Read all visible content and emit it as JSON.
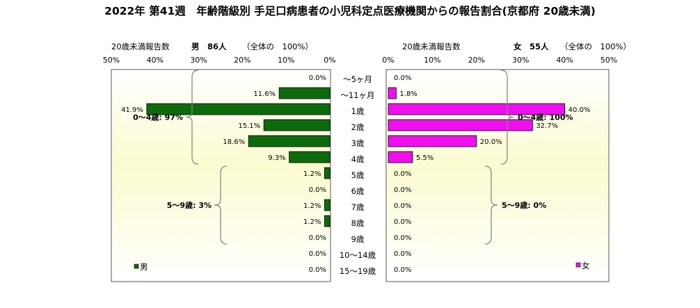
{
  "chart_data": {
    "type": "bar",
    "title": "2022年 第41週　年齢階級別 手足口病患者の小児科定点医療機関からの報告割合(京都府 20歳未満)",
    "categories": [
      "～5ヶ月",
      "～11ヶ月",
      "1歳",
      "2歳",
      "3歳",
      "4歳",
      "5歳",
      "6歳",
      "7歳",
      "8歳",
      "9歳",
      "10～14歳",
      "15～19歳"
    ],
    "xlim": [
      0,
      50
    ],
    "tick_labels": [
      "0%",
      "10%",
      "20%",
      "30%",
      "40%",
      "50%"
    ],
    "grid": false,
    "colors": {
      "male": "#0d6b0d",
      "female": "#ee11ee",
      "brace": "#888888"
    },
    "series": [
      {
        "name": "男",
        "side": "left",
        "header": {
          "count_label": "20歳未満報告数",
          "total": "男　86人",
          "share": "（全体の　100%）"
        },
        "values": [
          0.0,
          11.6,
          41.9,
          15.1,
          18.6,
          9.3,
          1.2,
          0.0,
          1.2,
          1.2,
          0.0,
          0.0,
          0.0
        ],
        "value_labels": [
          "0.0%",
          "11.6%",
          "41.9%",
          "15.1%",
          "18.6%",
          "9.3%",
          "1.2%",
          "0.0%",
          "1.2%",
          "1.2%",
          "0.0%",
          "0.0%",
          "0.0%"
        ],
        "legend": "男",
        "groups": [
          {
            "label": "0～4歳: 97%",
            "from": 0,
            "to": 5
          },
          {
            "label": "5～9歳: 3%",
            "from": 6,
            "to": 10
          }
        ]
      },
      {
        "name": "女",
        "side": "right",
        "header": {
          "count_label": "20歳未満報告数",
          "total": "女　55人",
          "share": "（全体の　100%）"
        },
        "values": [
          0.0,
          1.8,
          40.0,
          32.7,
          20.0,
          5.5,
          0.0,
          0.0,
          0.0,
          0.0,
          0.0,
          0.0,
          0.0
        ],
        "value_labels": [
          "0.0%",
          "1.8%",
          "40.0%",
          "32.7%",
          "20.0%",
          "5.5%",
          "0.0%",
          "0.0%",
          "0.0%",
          "0.0%",
          "0.0%",
          "0.0%",
          "0.0%"
        ],
        "legend": "女",
        "groups": [
          {
            "label": "0～4歳: 100%",
            "from": 0,
            "to": 5
          },
          {
            "label": "5～9歳: 0%",
            "from": 6,
            "to": 10
          }
        ]
      }
    ]
  }
}
